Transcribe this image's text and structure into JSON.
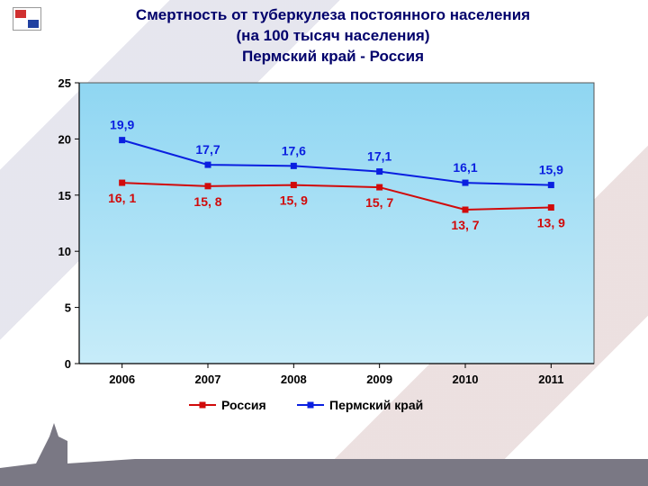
{
  "title": {
    "line1": "Смертность от туберкулеза постоянного населения",
    "line2": "(на 100 тысяч населения)",
    "line3": "Пермский край - Россия",
    "color": "#00006b",
    "fontsize": 17,
    "fontweight": "bold"
  },
  "chart": {
    "type": "line",
    "categories": [
      "2006",
      "2007",
      "2008",
      "2009",
      "2010",
      "2011"
    ],
    "ylim": [
      0,
      25
    ],
    "ytick_step": 5,
    "yticks": [
      0,
      5,
      10,
      15,
      20,
      25
    ],
    "plot_background_gradient": {
      "top": "#8fd6f2",
      "bottom": "#c7ecf9"
    },
    "plot_border_color": "#555555",
    "axis_label_color": "#000000",
    "tick_label_fontsize": 13,
    "tick_label_fontweight": "bold",
    "data_label_fontsize": 14,
    "data_label_fontweight": "bold",
    "series": [
      {
        "name": "Россия",
        "values": [
          16.1,
          15.8,
          15.9,
          15.7,
          13.7,
          13.9
        ],
        "labels": [
          "16, 1",
          "15, 8",
          "15, 9",
          "15, 7",
          "13, 7",
          "13, 9"
        ],
        "label_positions": [
          "below",
          "below",
          "below",
          "below",
          "below",
          "below"
        ],
        "color": "#d10a0a",
        "marker": "square",
        "marker_size": 7,
        "line_width": 2
      },
      {
        "name": "Пермский край",
        "values": [
          19.9,
          17.7,
          17.6,
          17.1,
          16.1,
          15.9
        ],
        "labels": [
          "19,9",
          "17,7",
          "17,6",
          "17,1",
          "16,1",
          "15,9"
        ],
        "label_positions": [
          "above",
          "above",
          "above",
          "above",
          "above",
          "above"
        ],
        "color": "#0a1fe0",
        "marker": "square",
        "marker_size": 7,
        "line_width": 2
      }
    ],
    "legend": {
      "position": "bottom-center",
      "fontsize": 14,
      "fontweight": "bold",
      "text_color": "#000000"
    }
  }
}
